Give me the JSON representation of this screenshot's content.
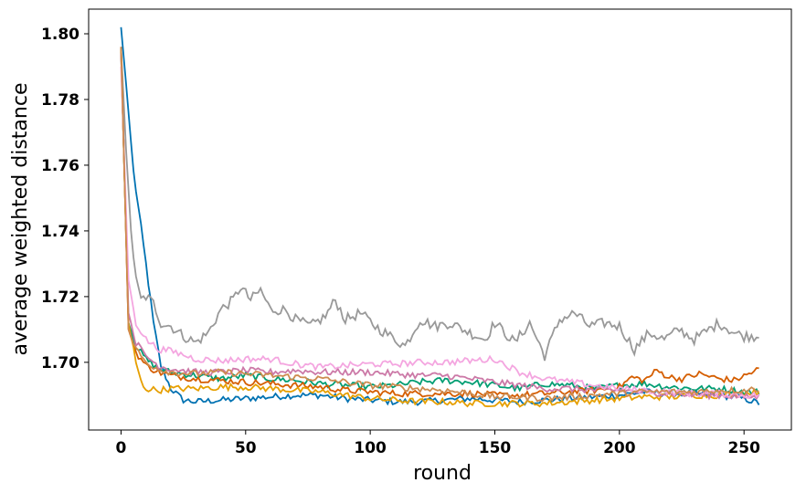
{
  "chart_data": {
    "type": "line",
    "title": "",
    "xlabel": "round",
    "ylabel": "average weighted distance",
    "xlim": [
      -13,
      269
    ],
    "ylim": [
      1.6794,
      1.8075
    ],
    "x_ticks": [
      0,
      50,
      100,
      150,
      200,
      250
    ],
    "y_ticks": [
      1.7,
      1.72,
      1.74,
      1.76,
      1.78,
      1.8
    ],
    "x_tick_labels": [
      "0",
      "50",
      "100",
      "150",
      "200",
      "250"
    ],
    "y_tick_labels": [
      "1.70",
      "1.72",
      "1.74",
      "1.76",
      "1.78",
      "1.80"
    ],
    "grid": false,
    "legend": "none",
    "series": [
      {
        "color": "#0072b2",
        "points": [
          [
            0,
            1.802
          ],
          [
            2,
            1.785
          ],
          [
            5,
            1.758
          ],
          [
            10,
            1.73
          ],
          [
            13,
            1.712
          ],
          [
            16,
            1.699
          ],
          [
            20,
            1.692
          ],
          [
            25,
            1.6885
          ],
          [
            30,
            1.688
          ],
          [
            40,
            1.6885
          ],
          [
            50,
            1.689
          ],
          [
            60,
            1.6895
          ],
          [
            70,
            1.69
          ],
          [
            80,
            1.69
          ],
          [
            90,
            1.689
          ],
          [
            100,
            1.6885
          ],
          [
            110,
            1.688
          ],
          [
            120,
            1.688
          ],
          [
            130,
            1.6885
          ],
          [
            140,
            1.689
          ],
          [
            150,
            1.6885
          ],
          [
            160,
            1.688
          ],
          [
            170,
            1.6885
          ],
          [
            180,
            1.689
          ],
          [
            190,
            1.6895
          ],
          [
            200,
            1.69
          ],
          [
            210,
            1.691
          ],
          [
            220,
            1.6905
          ],
          [
            230,
            1.6905
          ],
          [
            240,
            1.69
          ],
          [
            250,
            1.689
          ],
          [
            256,
            1.6875
          ]
        ]
      },
      {
        "color": "#999999",
        "points": [
          [
            0,
            1.796
          ],
          [
            2,
            1.765
          ],
          [
            4,
            1.74
          ],
          [
            6,
            1.725
          ],
          [
            8,
            1.719
          ],
          [
            10,
            1.72
          ],
          [
            13,
            1.718
          ],
          [
            16,
            1.712
          ],
          [
            20,
            1.711
          ],
          [
            25,
            1.708
          ],
          [
            30,
            1.706
          ],
          [
            35,
            1.709
          ],
          [
            40,
            1.716
          ],
          [
            45,
            1.719
          ],
          [
            48,
            1.723
          ],
          [
            52,
            1.719
          ],
          [
            56,
            1.722
          ],
          [
            60,
            1.716
          ],
          [
            66,
            1.716
          ],
          [
            70,
            1.713
          ],
          [
            76,
            1.711
          ],
          [
            82,
            1.714
          ],
          [
            86,
            1.719
          ],
          [
            90,
            1.713
          ],
          [
            96,
            1.715
          ],
          [
            102,
            1.711
          ],
          [
            108,
            1.708
          ],
          [
            114,
            1.705
          ],
          [
            120,
            1.713
          ],
          [
            126,
            1.711
          ],
          [
            132,
            1.712
          ],
          [
            140,
            1.709
          ],
          [
            146,
            1.707
          ],
          [
            150,
            1.712
          ],
          [
            158,
            1.706
          ],
          [
            164,
            1.712
          ],
          [
            170,
            1.702
          ],
          [
            176,
            1.713
          ],
          [
            182,
            1.715
          ],
          [
            188,
            1.711
          ],
          [
            194,
            1.712
          ],
          [
            200,
            1.711
          ],
          [
            206,
            1.704
          ],
          [
            212,
            1.709
          ],
          [
            218,
            1.707
          ],
          [
            224,
            1.71
          ],
          [
            230,
            1.707
          ],
          [
            236,
            1.71
          ],
          [
            240,
            1.712
          ],
          [
            246,
            1.709
          ],
          [
            250,
            1.708
          ],
          [
            256,
            1.708
          ]
        ]
      },
      {
        "color": "#009e73",
        "points": [
          [
            0,
            1.795
          ],
          [
            3,
            1.712
          ],
          [
            6,
            1.705
          ],
          [
            10,
            1.701
          ],
          [
            15,
            1.698
          ],
          [
            20,
            1.697
          ],
          [
            30,
            1.696
          ],
          [
            40,
            1.695
          ],
          [
            50,
            1.696
          ],
          [
            60,
            1.695
          ],
          [
            70,
            1.6945
          ],
          [
            80,
            1.6935
          ],
          [
            90,
            1.693
          ],
          [
            100,
            1.6925
          ],
          [
            110,
            1.693
          ],
          [
            120,
            1.694
          ],
          [
            130,
            1.6945
          ],
          [
            140,
            1.694
          ],
          [
            150,
            1.693
          ],
          [
            160,
            1.692
          ],
          [
            170,
            1.6935
          ],
          [
            180,
            1.693
          ],
          [
            190,
            1.692
          ],
          [
            200,
            1.693
          ],
          [
            210,
            1.6935
          ],
          [
            220,
            1.6925
          ],
          [
            230,
            1.692
          ],
          [
            240,
            1.692
          ],
          [
            250,
            1.691
          ],
          [
            256,
            1.691
          ]
        ]
      },
      {
        "color": "#d55e00",
        "points": [
          [
            0,
            1.796
          ],
          [
            3,
            1.71
          ],
          [
            6,
            1.703
          ],
          [
            10,
            1.699
          ],
          [
            15,
            1.697
          ],
          [
            20,
            1.696
          ],
          [
            30,
            1.695
          ],
          [
            40,
            1.6945
          ],
          [
            50,
            1.694
          ],
          [
            60,
            1.6935
          ],
          [
            70,
            1.693
          ],
          [
            80,
            1.6925
          ],
          [
            90,
            1.6915
          ],
          [
            100,
            1.691
          ],
          [
            110,
            1.6905
          ],
          [
            120,
            1.6905
          ],
          [
            130,
            1.6905
          ],
          [
            140,
            1.6905
          ],
          [
            150,
            1.69
          ],
          [
            160,
            1.69
          ],
          [
            170,
            1.6905
          ],
          [
            180,
            1.691
          ],
          [
            190,
            1.6915
          ],
          [
            200,
            1.6925
          ],
          [
            205,
            1.6955
          ],
          [
            210,
            1.6945
          ],
          [
            215,
            1.6975
          ],
          [
            220,
            1.6955
          ],
          [
            225,
            1.695
          ],
          [
            232,
            1.6965
          ],
          [
            240,
            1.695
          ],
          [
            246,
            1.6945
          ],
          [
            252,
            1.6965
          ],
          [
            256,
            1.698
          ]
        ]
      },
      {
        "color": "#e69f00",
        "points": [
          [
            0,
            1.795
          ],
          [
            3,
            1.712
          ],
          [
            6,
            1.7
          ],
          [
            8,
            1.694
          ],
          [
            10,
            1.692
          ],
          [
            15,
            1.6915
          ],
          [
            20,
            1.692
          ],
          [
            30,
            1.692
          ],
          [
            40,
            1.6925
          ],
          [
            50,
            1.6925
          ],
          [
            60,
            1.692
          ],
          [
            70,
            1.6915
          ],
          [
            80,
            1.691
          ],
          [
            90,
            1.69
          ],
          [
            100,
            1.689
          ],
          [
            110,
            1.6885
          ],
          [
            120,
            1.688
          ],
          [
            130,
            1.688
          ],
          [
            140,
            1.6875
          ],
          [
            150,
            1.6875
          ],
          [
            160,
            1.6875
          ],
          [
            170,
            1.6875
          ],
          [
            180,
            1.688
          ],
          [
            190,
            1.6885
          ],
          [
            200,
            1.689
          ],
          [
            210,
            1.6895
          ],
          [
            220,
            1.6895
          ],
          [
            230,
            1.69
          ],
          [
            240,
            1.69
          ],
          [
            250,
            1.6905
          ],
          [
            256,
            1.691
          ]
        ]
      },
      {
        "color": "#cc79a7",
        "points": [
          [
            0,
            1.794
          ],
          [
            3,
            1.715
          ],
          [
            6,
            1.706
          ],
          [
            10,
            1.702
          ],
          [
            15,
            1.699
          ],
          [
            20,
            1.698
          ],
          [
            30,
            1.697
          ],
          [
            40,
            1.697
          ],
          [
            50,
            1.6975
          ],
          [
            60,
            1.697
          ],
          [
            70,
            1.6975
          ],
          [
            80,
            1.697
          ],
          [
            90,
            1.697
          ],
          [
            100,
            1.697
          ],
          [
            110,
            1.6965
          ],
          [
            120,
            1.696
          ],
          [
            130,
            1.696
          ],
          [
            140,
            1.695
          ],
          [
            150,
            1.694
          ],
          [
            160,
            1.693
          ],
          [
            170,
            1.692
          ],
          [
            180,
            1.692
          ],
          [
            190,
            1.6915
          ],
          [
            200,
            1.6915
          ],
          [
            210,
            1.691
          ],
          [
            220,
            1.6905
          ],
          [
            230,
            1.69
          ],
          [
            240,
            1.69
          ],
          [
            250,
            1.6895
          ],
          [
            256,
            1.6895
          ]
        ]
      },
      {
        "color": "#f4a6e0",
        "points": [
          [
            0,
            1.79
          ],
          [
            3,
            1.725
          ],
          [
            6,
            1.712
          ],
          [
            10,
            1.707
          ],
          [
            15,
            1.704
          ],
          [
            20,
            1.7035
          ],
          [
            30,
            1.701
          ],
          [
            40,
            1.7005
          ],
          [
            50,
            1.701
          ],
          [
            60,
            1.701
          ],
          [
            70,
            1.6995
          ],
          [
            80,
            1.6985
          ],
          [
            90,
            1.699
          ],
          [
            100,
            1.6995
          ],
          [
            110,
            1.6995
          ],
          [
            120,
            1.7
          ],
          [
            130,
            1.7
          ],
          [
            140,
            1.7005
          ],
          [
            150,
            1.701
          ],
          [
            160,
            1.697
          ],
          [
            170,
            1.695
          ],
          [
            180,
            1.694
          ],
          [
            190,
            1.693
          ],
          [
            200,
            1.692
          ],
          [
            210,
            1.6915
          ],
          [
            220,
            1.691
          ],
          [
            230,
            1.6905
          ],
          [
            240,
            1.6905
          ],
          [
            250,
            1.69
          ],
          [
            256,
            1.69
          ]
        ]
      },
      {
        "color": "#cd8b4f",
        "points": [
          [
            0,
            1.796
          ],
          [
            3,
            1.71
          ],
          [
            6,
            1.704
          ],
          [
            10,
            1.7
          ],
          [
            15,
            1.698
          ],
          [
            20,
            1.697
          ],
          [
            30,
            1.6965
          ],
          [
            40,
            1.697
          ],
          [
            50,
            1.6965
          ],
          [
            60,
            1.696
          ],
          [
            70,
            1.6955
          ],
          [
            80,
            1.695
          ],
          [
            90,
            1.694
          ],
          [
            100,
            1.693
          ],
          [
            110,
            1.6925
          ],
          [
            120,
            1.692
          ],
          [
            130,
            1.6915
          ],
          [
            140,
            1.6905
          ],
          [
            150,
            1.6895
          ],
          [
            160,
            1.6895
          ],
          [
            170,
            1.689
          ],
          [
            180,
            1.6895
          ],
          [
            190,
            1.69
          ],
          [
            200,
            1.6905
          ],
          [
            210,
            1.691
          ],
          [
            220,
            1.691
          ],
          [
            230,
            1.691
          ],
          [
            240,
            1.6915
          ],
          [
            250,
            1.6915
          ],
          [
            256,
            1.692
          ]
        ]
      }
    ]
  }
}
